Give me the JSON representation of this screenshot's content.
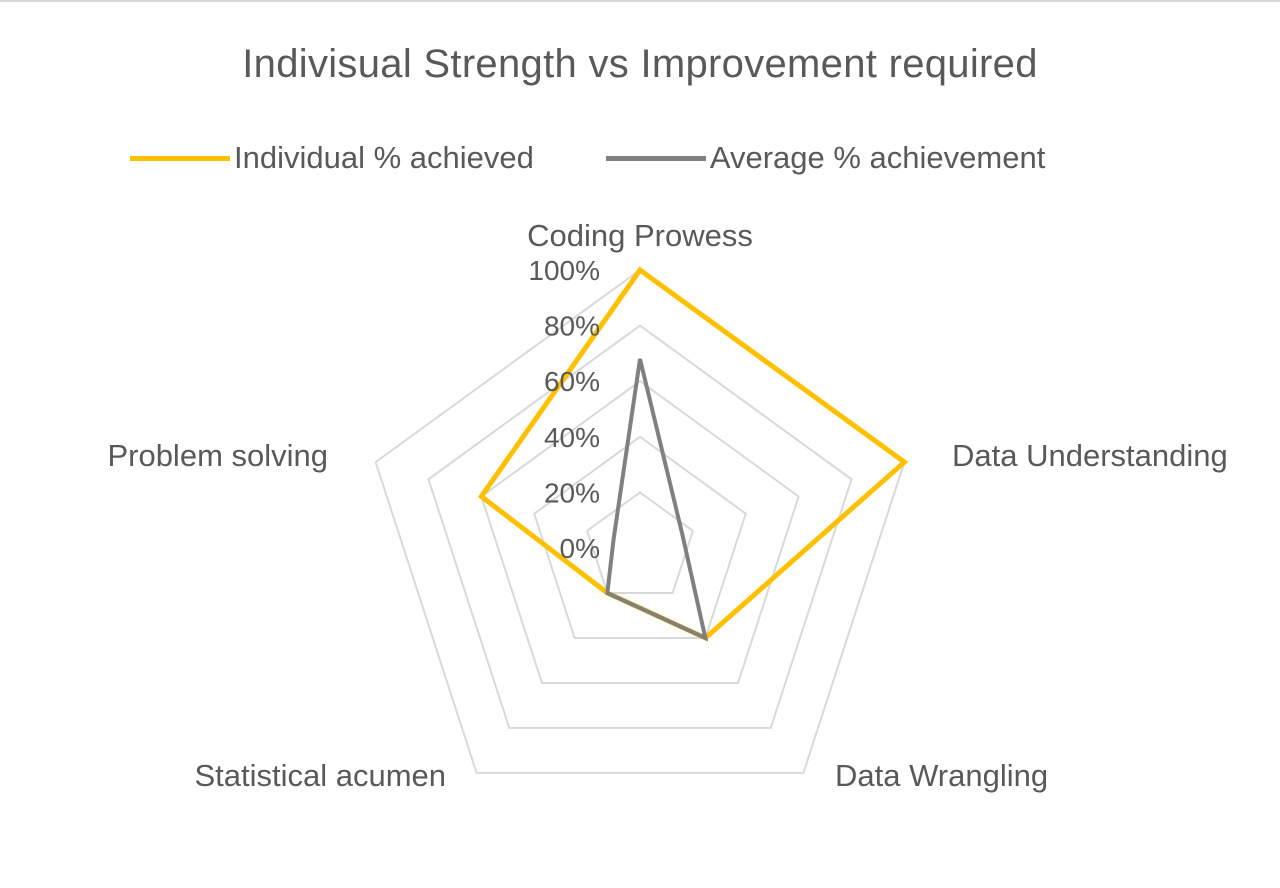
{
  "colors": {
    "individual": "#FFC000",
    "average": "#808080",
    "grid": "#d9d9d9",
    "text": "#595959"
  },
  "chart_data": {
    "type": "radar",
    "title": "Indivisual Strength vs Improvement required",
    "categories": [
      "Coding Prowess",
      "Data Understanding",
      "Data Wrangling",
      "Statistical acumen",
      "Problem solving"
    ],
    "series": [
      {
        "name": "Individual % achieved",
        "values": [
          100,
          100,
          40,
          20,
          60
        ]
      },
      {
        "name": "Average % achievement",
        "values": [
          68,
          16,
          40,
          20,
          10
        ]
      }
    ],
    "radial_ticks": [
      "0%",
      "20%",
      "40%",
      "60%",
      "80%",
      "100%"
    ],
    "ylim": [
      0,
      100
    ],
    "grid": true,
    "legend_position": "top"
  }
}
